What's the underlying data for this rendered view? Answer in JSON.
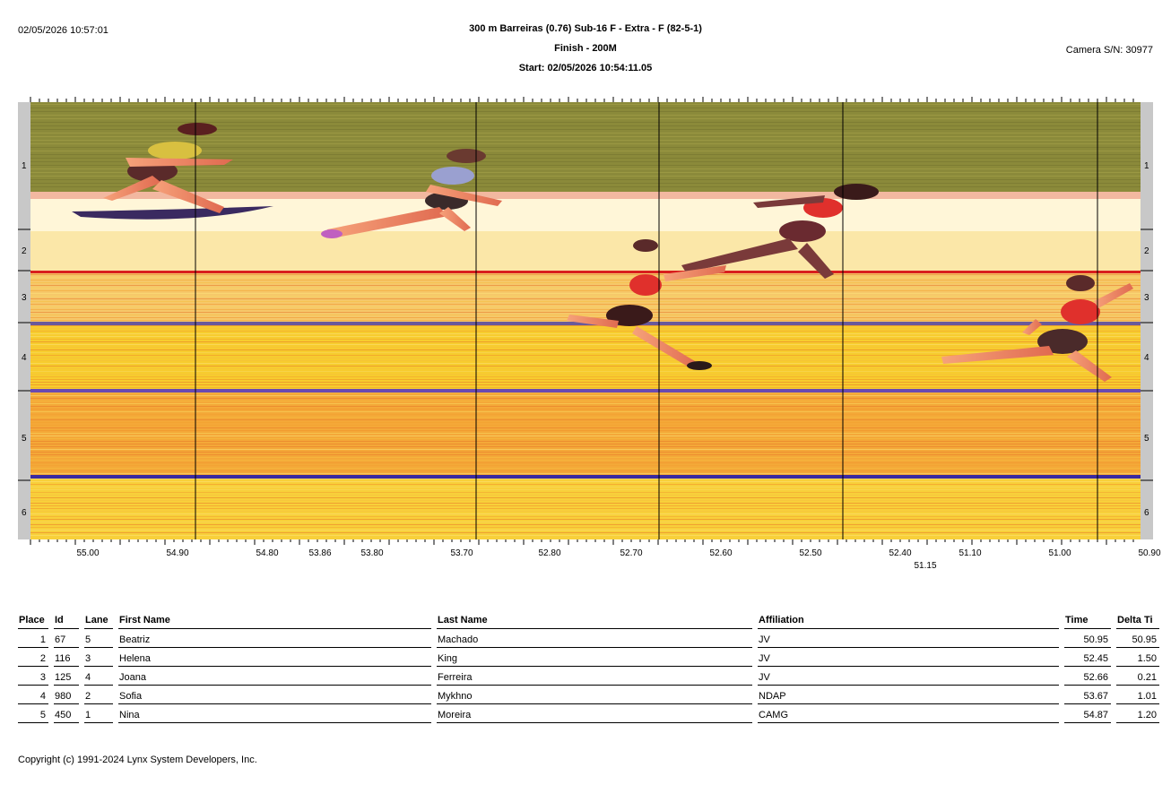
{
  "header": {
    "print_time": "02/05/2026 10:57:01",
    "event_title": "300 m Barreiras (0.76)  Sub-16 F - Extra - F (82-5-1)",
    "finish_label": "Finish - 200M",
    "start_label": "Start: 02/05/2026 10:54:11.05",
    "camera": "Camera S/N: 30977"
  },
  "photo": {
    "lane_labels": [
      "1",
      "2",
      "3",
      "4",
      "5",
      "6"
    ],
    "time_axis_labels": [
      "55.00",
      "54.90",
      "54.80",
      "53.86",
      "53.80",
      "53.70",
      "52.80",
      "52.70",
      "52.60",
      "52.50",
      "52.40",
      "51.10",
      "51.00",
      "50.90"
    ],
    "secondary_axis_label": "51.15",
    "colors": {
      "band_top": "#8b8a3a",
      "track_yellow": "#f7c52c",
      "track_orange": "#f08a2a",
      "lane_line_red": "#d81e1e",
      "lane_line_blue": "#4a3aa0",
      "runner_red": "#e0302c"
    }
  },
  "results": {
    "columns": [
      "Place",
      "Id",
      "Lane",
      "First Name",
      "Last Name",
      "Affiliation",
      "Time",
      "Delta Ti"
    ],
    "rows": [
      [
        "1",
        "67",
        "5",
        "Beatriz",
        "Machado",
        "JV",
        "50.95",
        "50.95"
      ],
      [
        "2",
        "116",
        "3",
        "Helena",
        "King",
        "JV",
        "52.45",
        "1.50"
      ],
      [
        "3",
        "125",
        "4",
        "Joana",
        "Ferreira",
        "JV",
        "52.66",
        "0.21"
      ],
      [
        "4",
        "980",
        "2",
        "Sofia",
        "Mykhno",
        "NDAP",
        "53.67",
        "1.01"
      ],
      [
        "5",
        "450",
        "1",
        "Nina",
        "Moreira",
        "CAMG",
        "54.87",
        "1.20"
      ]
    ]
  },
  "footer": {
    "copyright": "Copyright (c) 1991-2024 Lynx System Developers, Inc."
  }
}
